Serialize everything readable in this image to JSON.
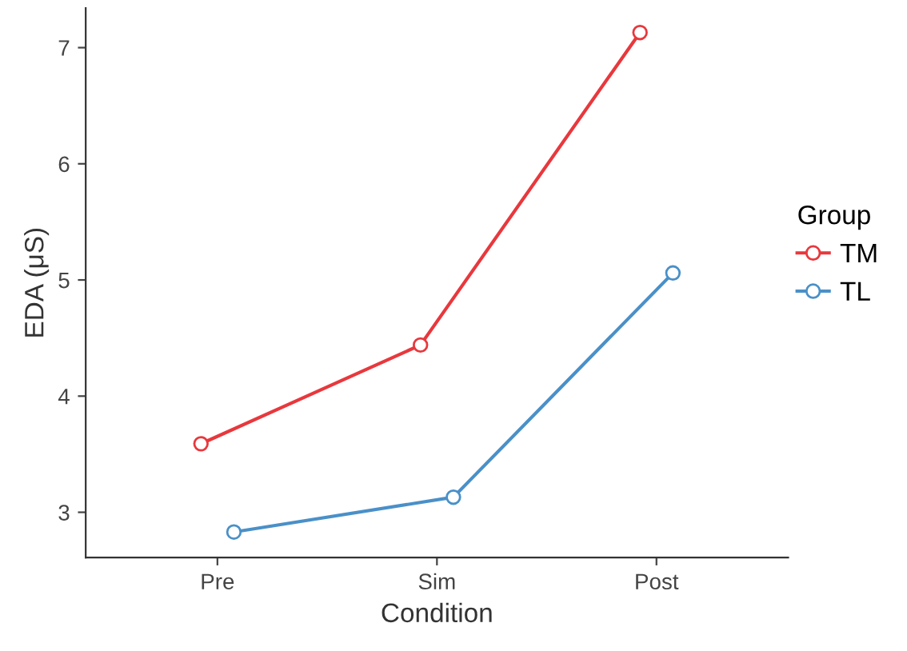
{
  "chart_data": {
    "type": "line",
    "xlabel": "Condition",
    "ylabel": "EDA (μS)",
    "legend_title": "Group",
    "categories": [
      "Pre",
      "Sim",
      "Post"
    ],
    "series": [
      {
        "name": "TM",
        "color": "#e8383d",
        "values": [
          3.59,
          4.44,
          7.13
        ]
      },
      {
        "name": "TL",
        "color": "#4a90c8",
        "values": [
          2.83,
          3.13,
          5.06
        ]
      }
    ],
    "ylim": [
      2.61,
      7.34
    ],
    "yticks": [
      3,
      4,
      5,
      6,
      7
    ],
    "grid": false,
    "legend": "right",
    "marker": "circle",
    "line_style": "solid"
  }
}
